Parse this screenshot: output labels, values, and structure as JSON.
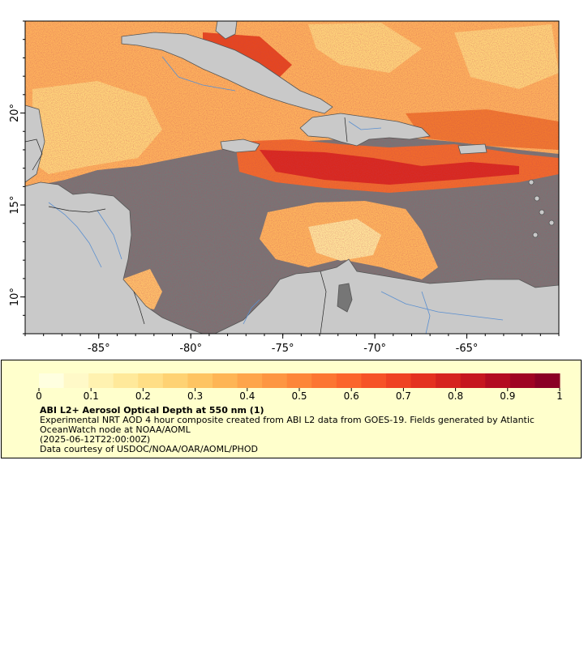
{
  "map": {
    "lon_ticks": [
      {
        "lon": -85,
        "label": "-85°"
      },
      {
        "lon": -80,
        "label": "-80°"
      },
      {
        "lon": -75,
        "label": "-75°"
      },
      {
        "lon": -70,
        "label": "-70°"
      },
      {
        "lon": -65,
        "label": "-65°"
      }
    ],
    "lat_ticks": [
      {
        "lat": 20,
        "label": "20°"
      },
      {
        "lat": 15,
        "label": "15°"
      },
      {
        "lat": 10,
        "label": "10°"
      }
    ],
    "extent": {
      "lon_min": -89,
      "lon_max": -60,
      "lat_min": 8,
      "lat_max": 25
    },
    "colors": {
      "ocean_nodata": "#767676",
      "land": "#c9c9c9",
      "coast": "#555555",
      "rivers": "#5a8fd0",
      "aod_low": "#ffffcc",
      "aod_mid": "#fd8d3c",
      "aod_high": "#800026"
    }
  },
  "colorbar": {
    "min": 0,
    "max": 1,
    "tick_labels": [
      "0",
      "0.1",
      "0.2",
      "0.3",
      "0.4",
      "0.5",
      "0.6",
      "0.7",
      "0.8",
      "0.9",
      "1"
    ],
    "colors": [
      "#ffffe0",
      "#fff9c8",
      "#fff2b0",
      "#ffe99a",
      "#ffde85",
      "#fed273",
      "#fec462",
      "#feb555",
      "#fea54b",
      "#fd9642",
      "#fd8639",
      "#fc7632",
      "#fb652c",
      "#f65327",
      "#ef4223",
      "#e43220",
      "#d6241f",
      "#c6171f",
      "#b30c21",
      "#9f0423",
      "#8a0025"
    ]
  },
  "legend": {
    "title": "ABI L2+ Aerosol Optical Depth at 550 nm (1)",
    "line1": "Experimental NRT AOD 4 hour composite created from ABI L2 data from GOES-19. Fields generated by Atlantic OceanWatch node at NOAA/AOML",
    "line2": "(2025-06-12T22:00:00Z)",
    "line3": "Data courtesy of USDOC/NOAA/OAR/AOML/PHOD"
  }
}
